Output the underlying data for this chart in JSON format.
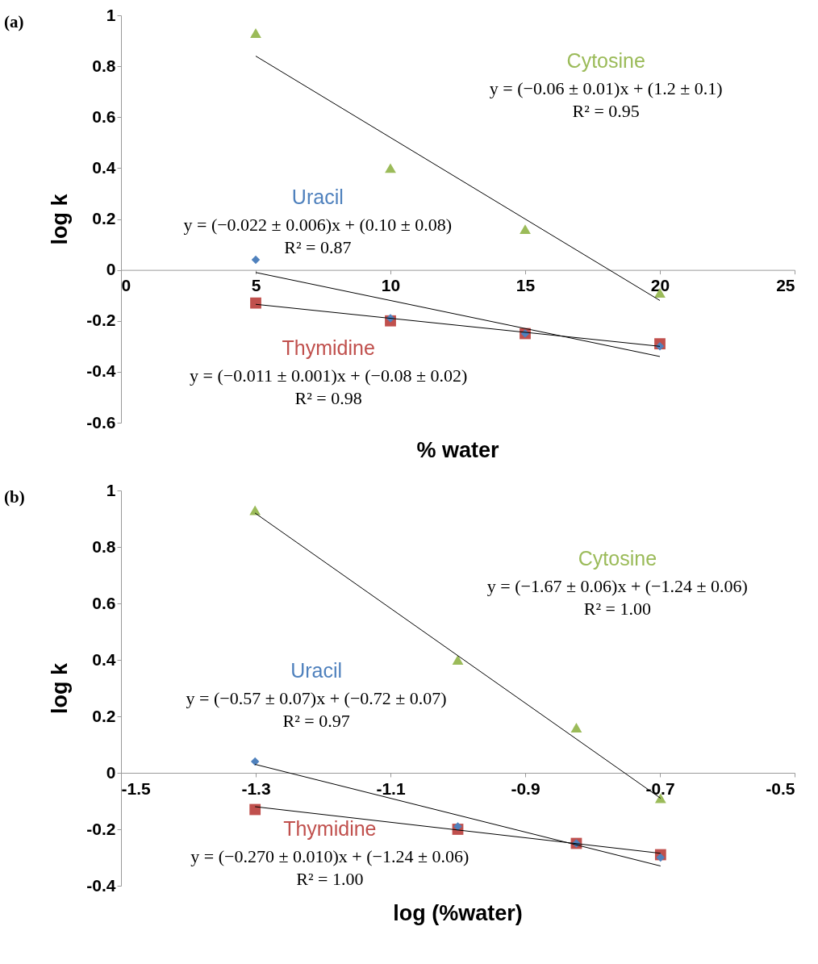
{
  "chart_data": [
    {
      "type": "scatter",
      "xlabel": "% water",
      "ylabel": "log k",
      "x": [
        5,
        10,
        15,
        20
      ],
      "xlim": [
        0,
        25
      ],
      "xticks": [
        0,
        5,
        10,
        15,
        20,
        25
      ],
      "ylim": [
        -0.6,
        1
      ],
      "yticks": [
        -0.6,
        -0.4,
        -0.2,
        0,
        0.2,
        0.4,
        0.6,
        0.8,
        1
      ],
      "grid": false,
      "series": [
        {
          "name": "Uracil",
          "color": "#4f81bd",
          "marker": "diamond",
          "values": [
            0.04,
            -0.19,
            -0.25,
            -0.3
          ]
        },
        {
          "name": "Cytosine",
          "color": "#9bbb59",
          "marker": "triangle",
          "values": [
            0.93,
            0.4,
            0.16,
            -0.09
          ]
        },
        {
          "name": "Thymidine",
          "color": "#c0504d",
          "marker": "square",
          "values": [
            -0.13,
            -0.2,
            -0.25,
            -0.29
          ]
        },
        {
          "type": "line",
          "color": "#000000",
          "x": [
            5,
            20
          ],
          "values": [
            -0.01,
            -0.34
          ]
        },
        {
          "type": "line",
          "color": "#000000",
          "x": [
            5,
            20
          ],
          "values": [
            0.84,
            -0.12
          ]
        },
        {
          "type": "line",
          "color": "#000000",
          "x": [
            5,
            20
          ],
          "values": [
            -0.135,
            -0.3
          ]
        }
      ],
      "annotations": [
        "(a)",
        "y = (−0.022 ± 0.006)x + (0.10 ± 0.08)\nR² = 0.87",
        "y = (−0.06 ± 0.01)x + (1.2 ± 0.1)\nR² = 0.95",
        "y = (−0.011 ± 0.001)x + (−0.08 ± 0.02)\nR² = 0.98"
      ]
    },
    {
      "type": "scatter",
      "xlabel": "log (%water)",
      "ylabel": "log k",
      "x": [
        -1.301,
        -1.0,
        -0.824,
        -0.699
      ],
      "xlim": [
        -1.5,
        -0.5
      ],
      "xticks": [
        -1.5,
        -1.3,
        -1.1,
        -0.9,
        -0.7,
        -0.5
      ],
      "ylim": [
        -0.4,
        1
      ],
      "yticks": [
        -0.4,
        -0.2,
        0,
        0.2,
        0.4,
        0.6,
        0.8,
        1
      ],
      "grid": false,
      "series": [
        {
          "name": "Uracil",
          "color": "#4f81bd",
          "marker": "diamond",
          "values": [
            0.04,
            -0.19,
            -0.25,
            -0.3
          ]
        },
        {
          "name": "Cytosine",
          "color": "#9bbb59",
          "marker": "triangle",
          "values": [
            0.93,
            0.4,
            0.16,
            -0.09
          ]
        },
        {
          "name": "Thymidine",
          "color": "#c0504d",
          "marker": "square",
          "values": [
            -0.13,
            -0.2,
            -0.25,
            -0.29
          ]
        },
        {
          "type": "line",
          "color": "#000000",
          "x": [
            -1.301,
            -0.699
          ],
          "values": [
            0.03,
            -0.33
          ]
        },
        {
          "type": "line",
          "color": "#000000",
          "x": [
            -1.301,
            -0.699
          ],
          "values": [
            0.92,
            -0.09
          ]
        },
        {
          "type": "line",
          "color": "#000000",
          "x": [
            -1.301,
            -0.699
          ],
          "values": [
            -0.12,
            -0.285
          ]
        }
      ],
      "annotations": [
        "(b)",
        "y = (−0.57 ± 0.07)x + (−0.72 ± 0.07)\nR² = 0.97",
        "y = (−1.67 ± 0.06)x + (−1.24 ± 0.06)\nR² = 1.00",
        "y = (−0.270 ± 0.010)x + (−1.24 ± 0.06)\nR² = 1.00"
      ]
    }
  ]
}
